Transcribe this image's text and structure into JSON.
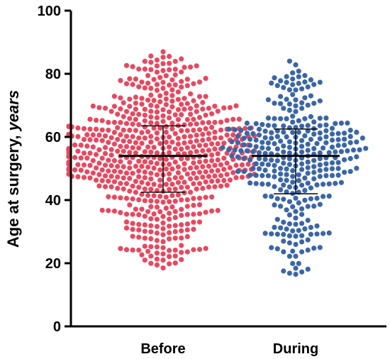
{
  "chart_data": {
    "type": "scatter",
    "subtype": "beeswarm",
    "title": "",
    "ylabel": {
      "main": "Age at surgery, ",
      "unit": "years"
    },
    "ylim": [
      0,
      100
    ],
    "yticks": [
      "0",
      "20",
      "40",
      "60",
      "80",
      "100"
    ],
    "categories": [
      "Before",
      "During"
    ],
    "series": [
      {
        "category": "Before",
        "color": "#e8485f",
        "n_points": 640,
        "min": 18.5,
        "max": 87,
        "median": 54,
        "sd_low": 42.5,
        "sd_high": 63.5,
        "shape": "peak-mid-50s, broad 20-80"
      },
      {
        "category": "During",
        "color": "#3a66a6",
        "n_points": 330,
        "min": 16.5,
        "max": 84,
        "median": 54,
        "sd_low": 42,
        "sd_high": 62.5,
        "shape": "peak-mid-50s, broad 20-80"
      }
    ]
  }
}
